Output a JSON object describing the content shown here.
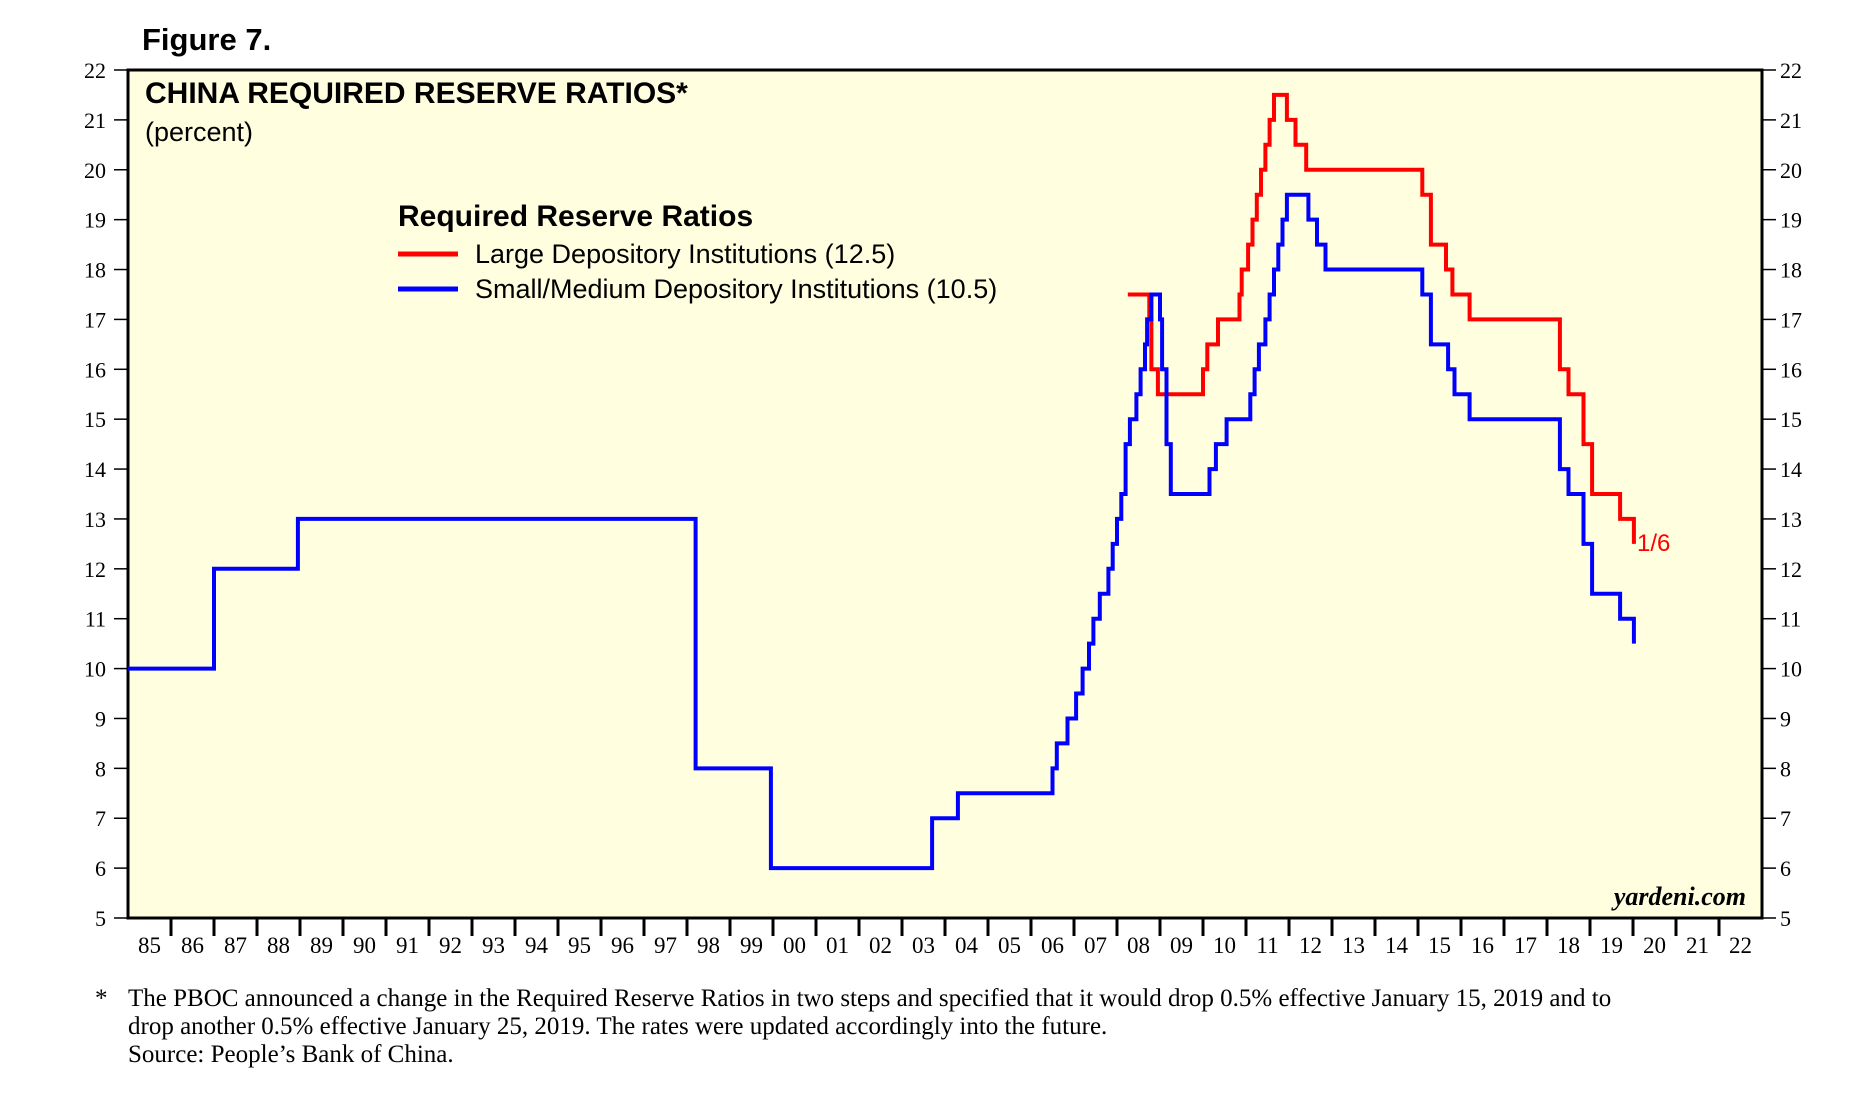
{
  "figure_label": "Figure 7.",
  "chart_data": {
    "type": "line",
    "title": "CHINA REQUIRED RESERVE RATIOS*",
    "subtitle": "(percent)",
    "legend": {
      "title": "Required Reserve Ratios",
      "placement": "top-center"
    },
    "watermark": "yardeni.com",
    "end_label": "1/6",
    "ylim": [
      5,
      22
    ],
    "yticks": [
      5,
      6,
      7,
      8,
      9,
      10,
      11,
      12,
      13,
      14,
      15,
      16,
      17,
      18,
      19,
      20,
      21,
      22
    ],
    "xlim": [
      1985,
      2023
    ],
    "x_tick_labels": [
      "85",
      "86",
      "87",
      "88",
      "89",
      "90",
      "91",
      "92",
      "93",
      "94",
      "95",
      "96",
      "97",
      "98",
      "99",
      "00",
      "01",
      "02",
      "03",
      "04",
      "05",
      "06",
      "07",
      "08",
      "09",
      "10",
      "11",
      "12",
      "13",
      "14",
      "15",
      "16",
      "17",
      "18",
      "19",
      "20",
      "21",
      "22"
    ],
    "grid": false,
    "background_color": "#ffffe0",
    "series": [
      {
        "name": "Large Depository Institutions (12.5)",
        "color": "#ff0000",
        "step": true,
        "points": [
          [
            2008.25,
            17.5
          ],
          [
            2008.75,
            17.0
          ],
          [
            2008.8,
            16.0
          ],
          [
            2008.95,
            15.5
          ],
          [
            2010.0,
            16.0
          ],
          [
            2010.1,
            16.5
          ],
          [
            2010.35,
            17.0
          ],
          [
            2010.85,
            17.5
          ],
          [
            2010.9,
            18.0
          ],
          [
            2011.05,
            18.5
          ],
          [
            2011.15,
            19.0
          ],
          [
            2011.25,
            19.5
          ],
          [
            2011.35,
            20.0
          ],
          [
            2011.45,
            20.5
          ],
          [
            2011.55,
            21.0
          ],
          [
            2011.65,
            21.5
          ],
          [
            2011.95,
            21.0
          ],
          [
            2012.15,
            20.5
          ],
          [
            2012.4,
            20.0
          ],
          [
            2015.1,
            19.5
          ],
          [
            2015.3,
            18.5
          ],
          [
            2015.65,
            18.0
          ],
          [
            2015.8,
            17.5
          ],
          [
            2016.2,
            17.0
          ],
          [
            2018.3,
            16.0
          ],
          [
            2018.5,
            15.5
          ],
          [
            2018.85,
            14.5
          ],
          [
            2019.05,
            13.5
          ],
          [
            2019.7,
            13.0
          ],
          [
            2020.02,
            12.5
          ]
        ]
      },
      {
        "name": "Small/Medium Depository Institutions (10.5)",
        "color": "#0000ff",
        "step": true,
        "points": [
          [
            1985.0,
            10.0
          ],
          [
            1987.0,
            12.0
          ],
          [
            1988.95,
            13.0
          ],
          [
            1998.2,
            8.0
          ],
          [
            1999.95,
            6.0
          ],
          [
            2003.7,
            7.0
          ],
          [
            2004.3,
            7.5
          ],
          [
            2006.5,
            8.0
          ],
          [
            2006.6,
            8.5
          ],
          [
            2006.85,
            9.0
          ],
          [
            2007.05,
            9.5
          ],
          [
            2007.2,
            10.0
          ],
          [
            2007.35,
            10.5
          ],
          [
            2007.45,
            11.0
          ],
          [
            2007.6,
            11.5
          ],
          [
            2007.8,
            12.0
          ],
          [
            2007.9,
            12.5
          ],
          [
            2008.0,
            13.0
          ],
          [
            2008.1,
            13.5
          ],
          [
            2008.2,
            14.5
          ],
          [
            2008.3,
            15.0
          ],
          [
            2008.45,
            15.5
          ],
          [
            2008.55,
            16.0
          ],
          [
            2008.65,
            16.5
          ],
          [
            2008.7,
            17.0
          ],
          [
            2008.8,
            17.5
          ],
          [
            2009.0,
            17.0
          ],
          [
            2009.05,
            16.0
          ],
          [
            2009.15,
            14.5
          ],
          [
            2009.25,
            13.5
          ],
          [
            2010.15,
            14.0
          ],
          [
            2010.3,
            14.5
          ],
          [
            2010.55,
            15.0
          ],
          [
            2011.1,
            15.5
          ],
          [
            2011.2,
            16.0
          ],
          [
            2011.3,
            16.5
          ],
          [
            2011.45,
            17.0
          ],
          [
            2011.55,
            17.5
          ],
          [
            2011.65,
            18.0
          ],
          [
            2011.75,
            18.5
          ],
          [
            2011.85,
            19.0
          ],
          [
            2011.95,
            19.5
          ],
          [
            2012.45,
            19.0
          ],
          [
            2012.65,
            18.5
          ],
          [
            2012.85,
            18.0
          ],
          [
            2015.1,
            17.5
          ],
          [
            2015.3,
            16.5
          ],
          [
            2015.7,
            16.0
          ],
          [
            2015.85,
            15.5
          ],
          [
            2016.2,
            15.0
          ],
          [
            2018.3,
            14.0
          ],
          [
            2018.5,
            13.5
          ],
          [
            2018.85,
            12.5
          ],
          [
            2019.05,
            11.5
          ],
          [
            2019.7,
            11.0
          ],
          [
            2020.02,
            10.5
          ]
        ]
      }
    ]
  },
  "footnote": {
    "marker": "*",
    "lines": [
      "The PBOC announced a change in the Required Reserve Ratios in two steps and specified that it would drop 0.5% effective January 15, 2019 and to",
      "drop another 0.5% effective January 25, 2019. The rates were updated accordingly into the future.",
      "Source: People’s Bank of China."
    ]
  }
}
